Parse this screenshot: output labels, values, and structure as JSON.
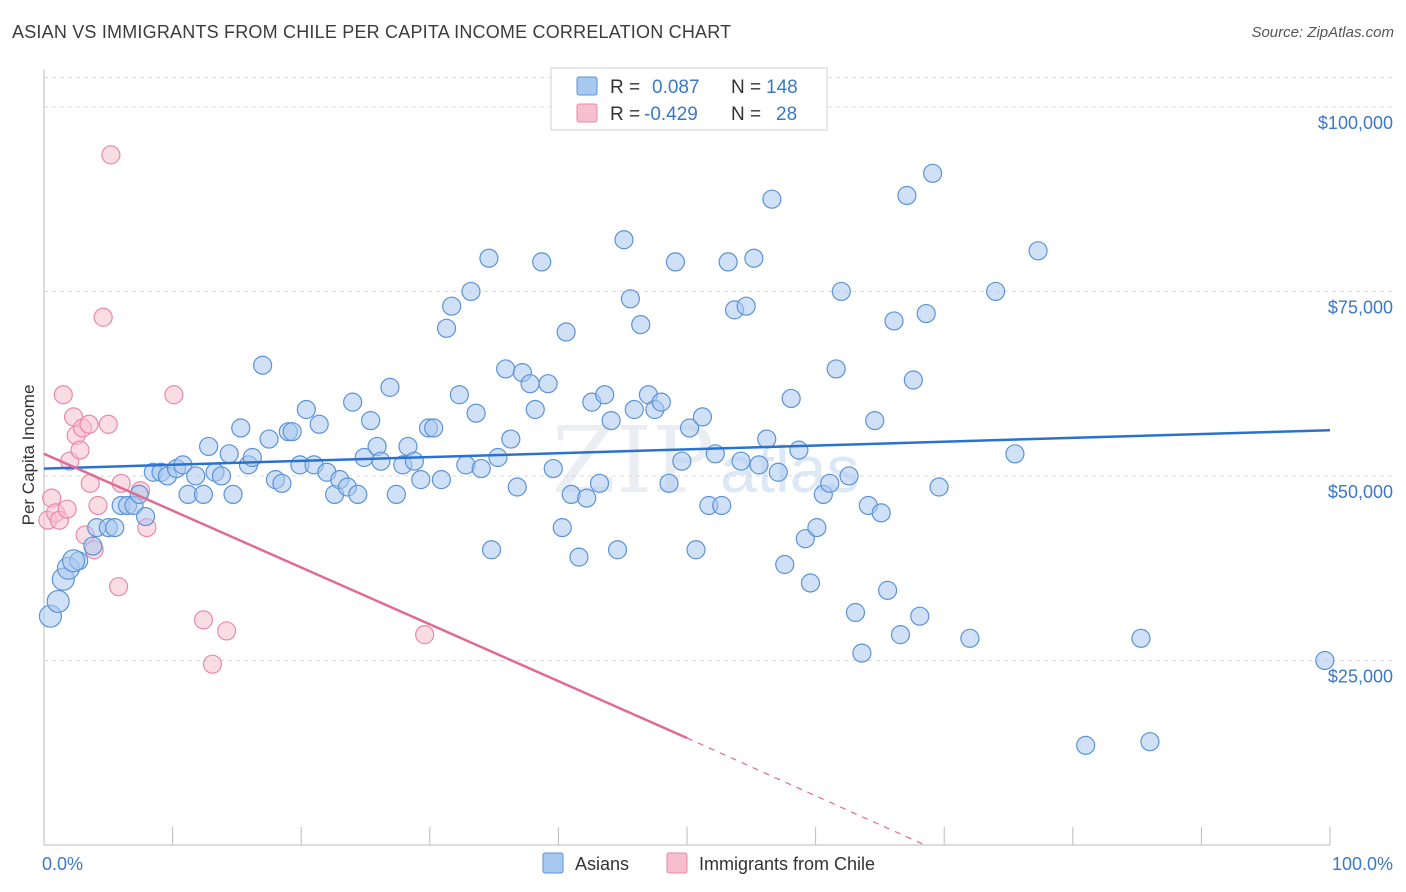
{
  "title": "ASIAN VS IMMIGRANTS FROM CHILE PER CAPITA INCOME CORRELATION CHART",
  "source": "Source: ZipAtlas.com",
  "watermark": {
    "zip": "ZIP",
    "atlas": "atlas"
  },
  "colors": {
    "asians_fill": "#a9c8f0",
    "asians_stroke": "#5b93d6",
    "asians_line": "#2a72d0",
    "chile_fill": "#f6bfd0",
    "chile_stroke": "#e88aa8",
    "chile_line": "#e06a94",
    "tick_text": "#3b78c8",
    "grid": "#d9d9d9"
  },
  "legend": {
    "rows": [
      {
        "r_label": "R =",
        "r_value": "0.087",
        "n_label": "N =",
        "n_value": "148"
      },
      {
        "r_label": "R =",
        "r_value": "-0.429",
        "n_label": "N =",
        "n_value": "28"
      }
    ]
  },
  "bottom_legend": [
    {
      "label": "Asians"
    },
    {
      "label": "Immigrants from Chile"
    }
  ],
  "chart_data": {
    "type": "scatter",
    "ylabel": "Per Capita Income",
    "xlim": [
      0,
      100
    ],
    "ylim": [
      0,
      105000
    ],
    "x_tick_labels": [
      "0.0%",
      "100.0%"
    ],
    "y_ticks": [
      25000,
      50000,
      75000,
      100000
    ],
    "y_tick_labels": [
      "$25,000",
      "$50,000",
      "$75,000",
      "$100,000"
    ],
    "grid": "horizontal dashed",
    "series": [
      {
        "name": "Asians",
        "trend": {
          "x": [
            0,
            100
          ],
          "y": [
            51000,
            56200
          ]
        },
        "points": [
          [
            0.5,
            31000
          ],
          [
            1.1,
            33000
          ],
          [
            1.5,
            36000
          ],
          [
            1.9,
            37500
          ],
          [
            2.7,
            38500
          ],
          [
            2.3,
            38500
          ],
          [
            3.8,
            40500
          ],
          [
            4.1,
            43000
          ],
          [
            5.0,
            43000
          ],
          [
            5.5,
            43000
          ],
          [
            6.0,
            46000
          ],
          [
            6.5,
            46000
          ],
          [
            7.0,
            46000
          ],
          [
            7.4,
            47500
          ],
          [
            7.9,
            44500
          ],
          [
            8.5,
            50500
          ],
          [
            9.1,
            50500
          ],
          [
            9.6,
            50000
          ],
          [
            10.3,
            51000
          ],
          [
            10.8,
            51500
          ],
          [
            11.2,
            47500
          ],
          [
            11.8,
            50000
          ],
          [
            12.4,
            47500
          ],
          [
            12.8,
            54000
          ],
          [
            13.3,
            50500
          ],
          [
            13.8,
            50000
          ],
          [
            14.4,
            53000
          ],
          [
            14.7,
            47500
          ],
          [
            15.3,
            56500
          ],
          [
            15.9,
            51500
          ],
          [
            16.2,
            52500
          ],
          [
            17.0,
            65000
          ],
          [
            17.5,
            55000
          ],
          [
            18.0,
            49500
          ],
          [
            18.5,
            49000
          ],
          [
            19.0,
            56000
          ],
          [
            19.3,
            56000
          ],
          [
            19.9,
            51500
          ],
          [
            20.4,
            59000
          ],
          [
            21.0,
            51500
          ],
          [
            21.4,
            57000
          ],
          [
            22.0,
            50500
          ],
          [
            22.6,
            47500
          ],
          [
            23.0,
            49500
          ],
          [
            23.6,
            48500
          ],
          [
            24.0,
            60000
          ],
          [
            24.4,
            47500
          ],
          [
            24.9,
            52500
          ],
          [
            25.4,
            57500
          ],
          [
            25.9,
            54000
          ],
          [
            26.2,
            52000
          ],
          [
            26.9,
            62000
          ],
          [
            27.4,
            47500
          ],
          [
            27.9,
            51500
          ],
          [
            28.3,
            54000
          ],
          [
            28.8,
            52000
          ],
          [
            29.3,
            49500
          ],
          [
            29.9,
            56500
          ],
          [
            30.3,
            56500
          ],
          [
            30.9,
            49500
          ],
          [
            31.3,
            70000
          ],
          [
            31.7,
            73000
          ],
          [
            32.3,
            61000
          ],
          [
            32.8,
            51500
          ],
          [
            33.2,
            75000
          ],
          [
            33.6,
            58500
          ],
          [
            34.0,
            51000
          ],
          [
            34.6,
            79500
          ],
          [
            34.8,
            40000
          ],
          [
            35.3,
            52500
          ],
          [
            35.9,
            64500
          ],
          [
            36.3,
            55000
          ],
          [
            36.8,
            48500
          ],
          [
            37.2,
            64000
          ],
          [
            37.8,
            62500
          ],
          [
            38.2,
            59000
          ],
          [
            38.7,
            79000
          ],
          [
            39.2,
            62500
          ],
          [
            39.6,
            51000
          ],
          [
            40.3,
            43000
          ],
          [
            40.6,
            69500
          ],
          [
            41.0,
            47500
          ],
          [
            41.6,
            39000
          ],
          [
            42.2,
            47000
          ],
          [
            42.6,
            60000
          ],
          [
            43.2,
            49000
          ],
          [
            43.6,
            61000
          ],
          [
            44.1,
            57500
          ],
          [
            44.6,
            40000
          ],
          [
            45.1,
            82000
          ],
          [
            45.6,
            74000
          ],
          [
            45.9,
            59000
          ],
          [
            46.4,
            70500
          ],
          [
            47.0,
            61000
          ],
          [
            47.5,
            59000
          ],
          [
            48.0,
            60000
          ],
          [
            48.6,
            49000
          ],
          [
            49.1,
            79000
          ],
          [
            49.6,
            52000
          ],
          [
            50.2,
            56500
          ],
          [
            50.7,
            40000
          ],
          [
            51.2,
            58000
          ],
          [
            51.7,
            46000
          ],
          [
            52.2,
            53000
          ],
          [
            52.7,
            46000
          ],
          [
            53.2,
            79000
          ],
          [
            53.7,
            72500
          ],
          [
            54.2,
            52000
          ],
          [
            54.6,
            73000
          ],
          [
            55.2,
            79500
          ],
          [
            55.6,
            51500
          ],
          [
            56.2,
            55000
          ],
          [
            56.6,
            87500
          ],
          [
            57.1,
            50500
          ],
          [
            57.6,
            38000
          ],
          [
            58.1,
            60500
          ],
          [
            58.7,
            53500
          ],
          [
            59.2,
            41500
          ],
          [
            59.6,
            35500
          ],
          [
            60.1,
            43000
          ],
          [
            60.6,
            47500
          ],
          [
            61.1,
            49000
          ],
          [
            61.6,
            64500
          ],
          [
            62.0,
            75000
          ],
          [
            62.6,
            50000
          ],
          [
            63.1,
            31500
          ],
          [
            63.6,
            26000
          ],
          [
            64.1,
            46000
          ],
          [
            64.6,
            57500
          ],
          [
            65.1,
            45000
          ],
          [
            65.6,
            34500
          ],
          [
            66.1,
            71000
          ],
          [
            66.6,
            28500
          ],
          [
            67.1,
            88000
          ],
          [
            67.6,
            63000
          ],
          [
            68.1,
            31000
          ],
          [
            68.6,
            72000
          ],
          [
            69.1,
            91000
          ],
          [
            69.6,
            48500
          ],
          [
            72.0,
            28000
          ],
          [
            74.0,
            75000
          ],
          [
            75.5,
            53000
          ],
          [
            77.3,
            80500
          ],
          [
            81.0,
            13500
          ],
          [
            85.3,
            28000
          ],
          [
            86.0,
            14000
          ],
          [
            99.6,
            25000
          ]
        ]
      },
      {
        "name": "Immigrants from Chile",
        "trend": {
          "x": [
            0,
            50
          ],
          "y": [
            53000,
            14500
          ]
        },
        "trend_dashed_extension": {
          "x": [
            50,
            68.5
          ],
          "y": [
            14500,
            0
          ]
        },
        "points": [
          [
            0.3,
            44000
          ],
          [
            0.6,
            47000
          ],
          [
            0.9,
            45000
          ],
          [
            1.2,
            44000
          ],
          [
            1.5,
            61000
          ],
          [
            1.8,
            45500
          ],
          [
            2.0,
            52000
          ],
          [
            2.3,
            58000
          ],
          [
            2.5,
            55500
          ],
          [
            2.8,
            53500
          ],
          [
            3.0,
            56500
          ],
          [
            3.2,
            42000
          ],
          [
            3.5,
            57000
          ],
          [
            3.6,
            49000
          ],
          [
            3.9,
            40000
          ],
          [
            4.2,
            46000
          ],
          [
            4.6,
            71500
          ],
          [
            5.0,
            57000
          ],
          [
            5.2,
            93500
          ],
          [
            5.8,
            35000
          ],
          [
            6.0,
            49000
          ],
          [
            7.5,
            48000
          ],
          [
            8.0,
            43000
          ],
          [
            10.1,
            61000
          ],
          [
            12.4,
            30500
          ],
          [
            13.1,
            24500
          ],
          [
            14.2,
            29000
          ],
          [
            29.6,
            28500
          ]
        ]
      }
    ]
  }
}
